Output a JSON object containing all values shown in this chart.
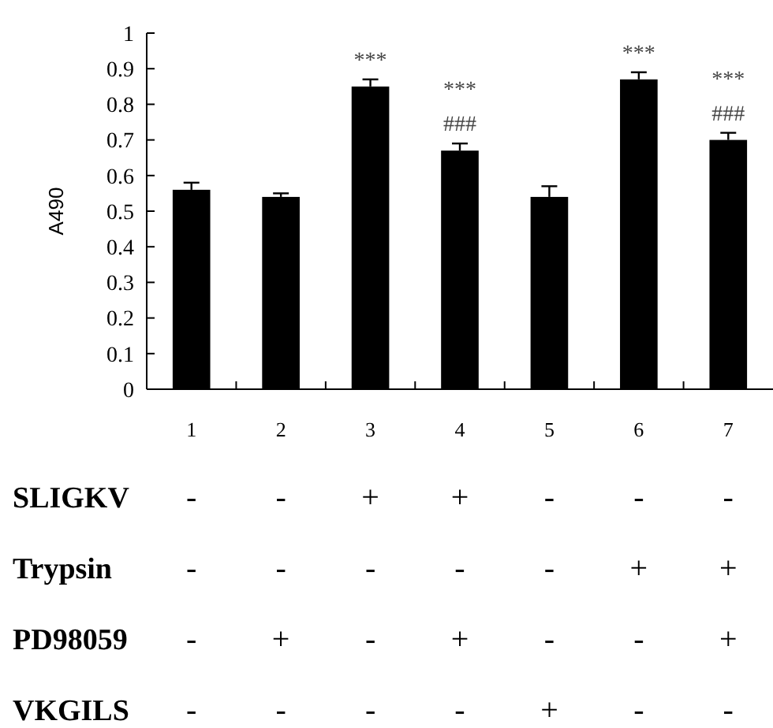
{
  "chart_data": {
    "type": "bar",
    "ylabel": "A490",
    "categories": [
      "1",
      "2",
      "3",
      "4",
      "5",
      "6",
      "7"
    ],
    "values": [
      0.56,
      0.54,
      0.85,
      0.67,
      0.54,
      0.87,
      0.7
    ],
    "errors": [
      0.02,
      0.01,
      0.02,
      0.02,
      0.03,
      0.02,
      0.02
    ],
    "color": "#000000",
    "ylim": [
      0,
      1
    ],
    "yticks": [
      0,
      0.1,
      0.2,
      0.3,
      0.4,
      0.5,
      0.6,
      0.7,
      0.8,
      0.9,
      1
    ],
    "annotations": [
      {
        "text": "***",
        "x": "3",
        "y": 0.87
      },
      {
        "text": "###",
        "x": "4",
        "y": 0.69
      },
      {
        "text": "***",
        "x": "4",
        "y": 0.69
      },
      {
        "text": "***",
        "x": "6",
        "y": 0.89
      },
      {
        "text": "###",
        "x": "7",
        "y": 0.72
      },
      {
        "text": "***",
        "x": "7",
        "y": 0.72
      },
      "SLIGKV - - + + - - -",
      "Trypsin - - - - - + +",
      "PD98059 - + - + - - +",
      "VKGILS - - - - + - -"
    ]
  }
}
